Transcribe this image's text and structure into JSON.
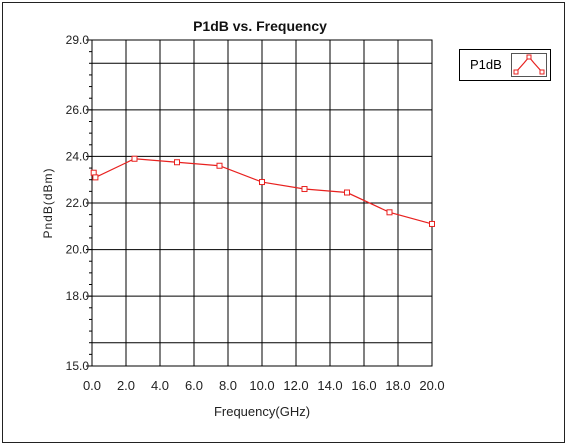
{
  "chart_data": {
    "type": "line",
    "title": "P1dB vs. Frequency",
    "xlabel": "Frequency(GHz)",
    "ylabel": "PndB(dBm)",
    "xlim": [
      0.0,
      20.0
    ],
    "ylim": [
      15.0,
      29.0
    ],
    "x_ticks": [
      "0.0",
      "2.0",
      "4.0",
      "6.0",
      "8.0",
      "10.0",
      "12.0",
      "14.0",
      "16.0",
      "18.0",
      "20.0"
    ],
    "y_ticks": [
      {
        "value": 29.0,
        "label": "29.0"
      },
      {
        "value": 26.0,
        "label": "26.0"
      },
      {
        "value": 24.0,
        "label": "24.0"
      },
      {
        "value": 22.0,
        "label": "22.0"
      },
      {
        "value": 20.0,
        "label": "20.0"
      },
      {
        "value": 18.0,
        "label": "18.0"
      },
      {
        "value": 15.0,
        "label": "15.0"
      }
    ],
    "grid": true,
    "legend_position": "top-right",
    "series": [
      {
        "name": "P1dB",
        "color": "#e8211f",
        "marker": "square",
        "points": [
          {
            "x": 0.1,
            "y": 23.3
          },
          {
            "x": 0.2,
            "y": 23.1
          },
          {
            "x": 2.5,
            "y": 23.9
          },
          {
            "x": 5.0,
            "y": 23.75
          },
          {
            "x": 7.5,
            "y": 23.6
          },
          {
            "x": 10.0,
            "y": 22.9
          },
          {
            "x": 12.5,
            "y": 22.6
          },
          {
            "x": 15.0,
            "y": 22.45
          },
          {
            "x": 17.5,
            "y": 21.6
          },
          {
            "x": 20.0,
            "y": 21.1
          }
        ]
      }
    ]
  }
}
